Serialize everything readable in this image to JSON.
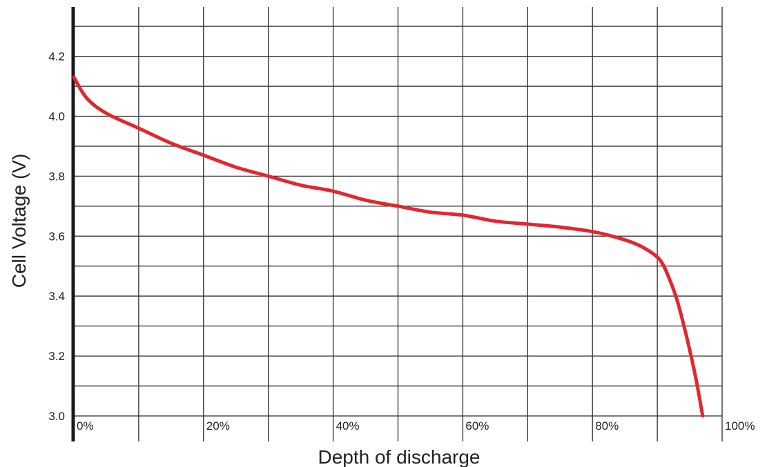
{
  "chart_data": {
    "type": "line",
    "title": "",
    "xlabel": "Depth of discharge",
    "ylabel": "Cell Voltage (V)",
    "xlim": [
      0,
      100
    ],
    "ylim": [
      3.0,
      4.35
    ],
    "grid": true,
    "legend": "none",
    "x_ticks": [
      {
        "value": 0,
        "label": "0%"
      },
      {
        "value": 20,
        "label": "20%"
      },
      {
        "value": 40,
        "label": "40%"
      },
      {
        "value": 60,
        "label": "60%"
      },
      {
        "value": 80,
        "label": "80%"
      },
      {
        "value": 100,
        "label": "100%"
      }
    ],
    "y_ticks": [
      {
        "value": 3.0,
        "label": "3.0"
      },
      {
        "value": 3.2,
        "label": "3.2"
      },
      {
        "value": 3.4,
        "label": "3.4"
      },
      {
        "value": 3.6,
        "label": "3.6"
      },
      {
        "value": 3.8,
        "label": "3.8"
      },
      {
        "value": 4.0,
        "label": "4.0"
      },
      {
        "value": 4.2,
        "label": "4.2"
      }
    ],
    "x_grid_values": [
      0,
      10,
      20,
      30,
      40,
      50,
      60,
      70,
      80,
      90,
      100
    ],
    "y_grid_values": [
      3.0,
      3.1,
      3.2,
      3.3,
      3.4,
      3.5,
      3.6,
      3.7,
      3.8,
      3.9,
      4.0,
      4.1,
      4.2,
      4.3
    ],
    "series": [
      {
        "color": "#e3262f",
        "x": [
          0,
          2,
          5,
          10,
          15,
          20,
          25,
          30,
          35,
          40,
          45,
          50,
          55,
          60,
          65,
          70,
          75,
          80,
          83,
          86,
          88,
          90,
          91,
          92,
          93,
          94,
          95,
          96,
          97
        ],
        "y": [
          4.13,
          4.06,
          4.01,
          3.96,
          3.91,
          3.87,
          3.83,
          3.8,
          3.77,
          3.75,
          3.72,
          3.7,
          3.68,
          3.67,
          3.65,
          3.64,
          3.63,
          3.615,
          3.6,
          3.58,
          3.56,
          3.53,
          3.5,
          3.45,
          3.39,
          3.31,
          3.22,
          3.12,
          3.0
        ]
      }
    ]
  },
  "colors": {
    "grid": "#2b2b2b",
    "axis": "#1a1a1a",
    "text": "#222222",
    "series": "#e3262f"
  }
}
